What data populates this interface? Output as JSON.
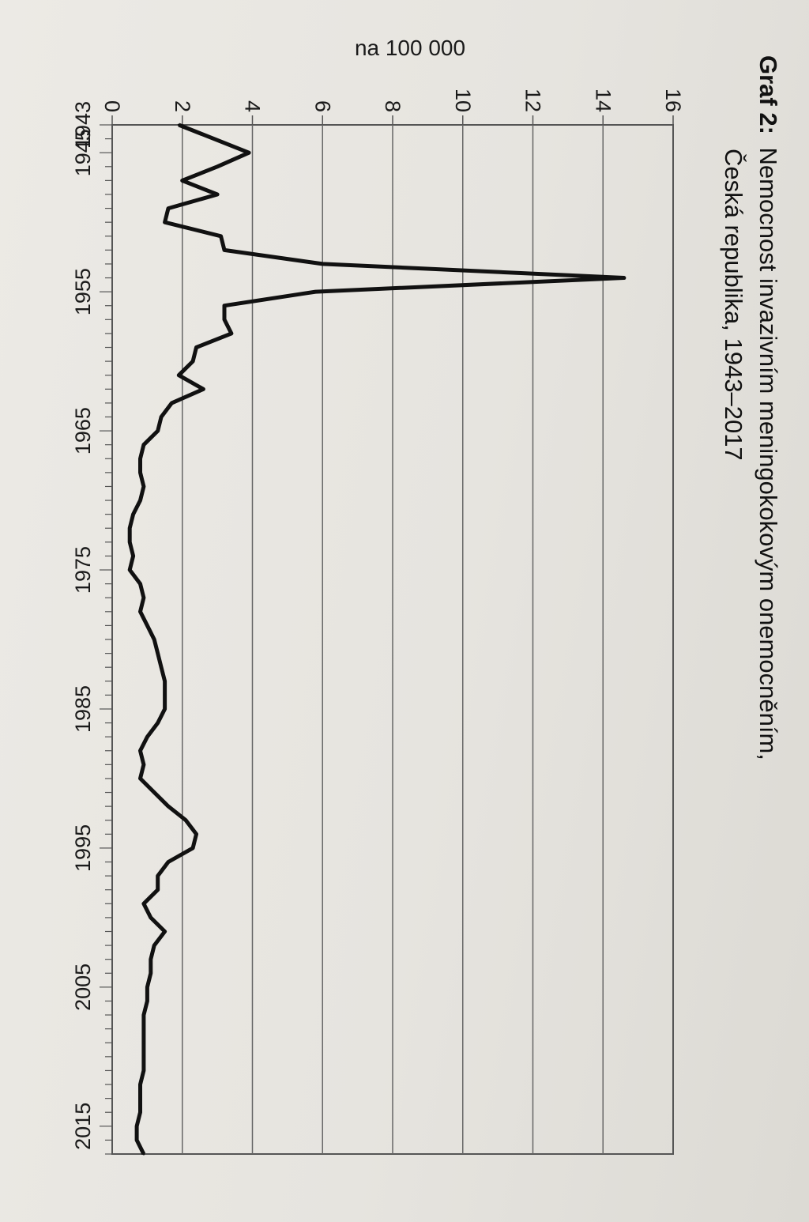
{
  "chart_data": {
    "type": "line",
    "title_prefix": "Graf 2:",
    "title": "Nemocnost invazivním meningokokovým onemocněním,",
    "subtitle": "Česká republika, 1943–2017",
    "ylabel": "na 100 000",
    "xlabel": "",
    "ylim": [
      0,
      16
    ],
    "yticks": [
      0,
      2,
      4,
      6,
      8,
      10,
      12,
      14,
      16
    ],
    "xticks": [
      1943,
      1945,
      1955,
      1965,
      1975,
      1985,
      1995,
      2005,
      2015
    ],
    "xlim": [
      1943,
      2017
    ],
    "grid": true,
    "series": [
      {
        "x": [
          1943,
          1944,
          1945,
          1946,
          1947,
          1948,
          1949,
          1950,
          1951,
          1952,
          1953,
          1954,
          1955,
          1956,
          1957,
          1958,
          1959,
          1960,
          1961,
          1962,
          1963,
          1964,
          1965,
          1966,
          1967,
          1968,
          1969,
          1970,
          1971,
          1972,
          1973,
          1974,
          1975,
          1976,
          1977,
          1978,
          1979,
          1980,
          1981,
          1982,
          1983,
          1984,
          1985,
          1986,
          1987,
          1988,
          1989,
          1990,
          1991,
          1992,
          1993,
          1994,
          1995,
          1996,
          1997,
          1998,
          1999,
          2000,
          2001,
          2002,
          2003,
          2004,
          2005,
          2006,
          2007,
          2008,
          2009,
          2010,
          2011,
          2012,
          2013,
          2014,
          2015,
          2016,
          2017
        ],
        "values": [
          1.9,
          2.9,
          3.9,
          3.0,
          2.0,
          3.0,
          1.6,
          1.5,
          3.1,
          3.2,
          6.0,
          14.6,
          5.8,
          3.2,
          3.2,
          3.4,
          2.4,
          2.3,
          1.9,
          2.6,
          1.7,
          1.4,
          1.3,
          0.9,
          0.8,
          0.8,
          0.9,
          0.8,
          0.6,
          0.5,
          0.5,
          0.6,
          0.5,
          0.8,
          0.9,
          0.8,
          1.0,
          1.2,
          1.3,
          1.4,
          1.5,
          1.5,
          1.5,
          1.3,
          1.0,
          0.8,
          0.9,
          0.8,
          1.2,
          1.6,
          2.1,
          2.4,
          2.3,
          1.6,
          1.3,
          1.3,
          0.9,
          1.1,
          1.5,
          1.2,
          1.1,
          1.1,
          1.0,
          1.0,
          0.9,
          0.9,
          0.9,
          0.9,
          0.9,
          0.8,
          0.8,
          0.8,
          0.7,
          0.7,
          0.9
        ]
      }
    ]
  }
}
